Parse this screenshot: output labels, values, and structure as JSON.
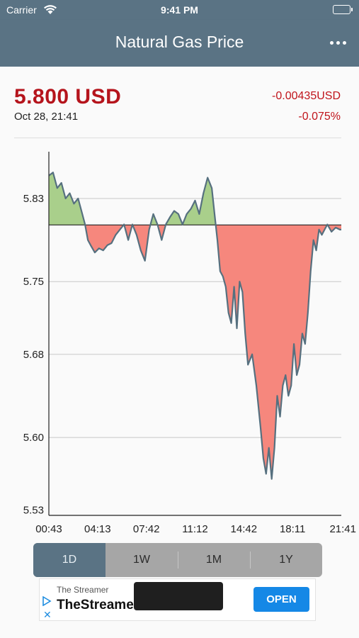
{
  "status_bar": {
    "carrier": "Carrier",
    "time": "9:41 PM"
  },
  "nav": {
    "title": "Natural Gas Price"
  },
  "quote": {
    "price": "5.800 USD",
    "date": "Oct 28, 21:41",
    "change_abs": "-0.00435USD",
    "change_pct": "-0.075%"
  },
  "colors": {
    "bar": "#5a7384",
    "price_red": "#b5141c",
    "area_up": "#a9cf8b",
    "area_down": "#f6877d",
    "line": "#56707f",
    "open_button": "#1588e6"
  },
  "chart_data": {
    "type": "area",
    "x_ticks": [
      "00:43",
      "04:13",
      "07:42",
      "11:12",
      "14:42",
      "18:11",
      "21:41"
    ],
    "y_ticks": [
      "5.83",
      "5.75",
      "5.68",
      "5.60",
      "5.53"
    ],
    "ylim": [
      5.525,
      5.875
    ],
    "baseline": 5.8045,
    "grid": "horizontal",
    "series": [
      {
        "values": [
          [
            0.0,
            5.852
          ],
          [
            0.3,
            5.855
          ],
          [
            0.6,
            5.84
          ],
          [
            0.9,
            5.845
          ],
          [
            1.2,
            5.83
          ],
          [
            1.5,
            5.835
          ],
          [
            1.8,
            5.825
          ],
          [
            2.1,
            5.83
          ],
          [
            2.4,
            5.815
          ],
          [
            2.6,
            5.805
          ],
          [
            2.8,
            5.79
          ],
          [
            3.0,
            5.785
          ],
          [
            3.3,
            5.778
          ],
          [
            3.6,
            5.782
          ],
          [
            3.9,
            5.78
          ],
          [
            4.2,
            5.785
          ],
          [
            4.5,
            5.787
          ],
          [
            4.8,
            5.795
          ],
          [
            5.1,
            5.8
          ],
          [
            5.4,
            5.805
          ],
          [
            5.7,
            5.79
          ],
          [
            6.0,
            5.805
          ],
          [
            6.3,
            5.795
          ],
          [
            6.6,
            5.78
          ],
          [
            6.9,
            5.77
          ],
          [
            7.2,
            5.8
          ],
          [
            7.5,
            5.815
          ],
          [
            7.8,
            5.805
          ],
          [
            8.1,
            5.79
          ],
          [
            8.4,
            5.805
          ],
          [
            8.7,
            5.812
          ],
          [
            9.0,
            5.818
          ],
          [
            9.3,
            5.815
          ],
          [
            9.6,
            5.805
          ],
          [
            9.9,
            5.815
          ],
          [
            10.2,
            5.82
          ],
          [
            10.5,
            5.828
          ],
          [
            10.8,
            5.815
          ],
          [
            11.1,
            5.835
          ],
          [
            11.4,
            5.85
          ],
          [
            11.7,
            5.84
          ],
          [
            11.9,
            5.815
          ],
          [
            12.1,
            5.79
          ],
          [
            12.3,
            5.76
          ],
          [
            12.5,
            5.755
          ],
          [
            12.7,
            5.745
          ],
          [
            12.9,
            5.72
          ],
          [
            13.1,
            5.71
          ],
          [
            13.3,
            5.745
          ],
          [
            13.5,
            5.705
          ],
          [
            13.7,
            5.75
          ],
          [
            13.9,
            5.74
          ],
          [
            14.1,
            5.7
          ],
          [
            14.3,
            5.67
          ],
          [
            14.6,
            5.68
          ],
          [
            14.9,
            5.65
          ],
          [
            15.2,
            5.61
          ],
          [
            15.4,
            5.58
          ],
          [
            15.6,
            5.565
          ],
          [
            15.8,
            5.59
          ],
          [
            16.0,
            5.56
          ],
          [
            16.2,
            5.59
          ],
          [
            16.4,
            5.64
          ],
          [
            16.6,
            5.62
          ],
          [
            16.8,
            5.65
          ],
          [
            17.0,
            5.66
          ],
          [
            17.2,
            5.64
          ],
          [
            17.4,
            5.65
          ],
          [
            17.6,
            5.69
          ],
          [
            17.8,
            5.66
          ],
          [
            18.0,
            5.67
          ],
          [
            18.2,
            5.7
          ],
          [
            18.4,
            5.69
          ],
          [
            18.6,
            5.72
          ],
          [
            18.8,
            5.76
          ],
          [
            19.0,
            5.79
          ],
          [
            19.2,
            5.78
          ],
          [
            19.4,
            5.8
          ],
          [
            19.6,
            5.795
          ],
          [
            19.8,
            5.8
          ],
          [
            20.0,
            5.805
          ],
          [
            20.3,
            5.798
          ],
          [
            20.6,
            5.802
          ],
          [
            20.9,
            5.8
          ],
          [
            21.0,
            5.8
          ]
        ]
      }
    ]
  },
  "range_tabs": [
    {
      "label": "1D",
      "active": true
    },
    {
      "label": "1W",
      "active": false
    },
    {
      "label": "1M",
      "active": false
    },
    {
      "label": "1Y",
      "active": false
    }
  ],
  "ad": {
    "brand_small": "The Streamer",
    "brand_big": "TheStreamer",
    "open_label": "OPEN"
  }
}
